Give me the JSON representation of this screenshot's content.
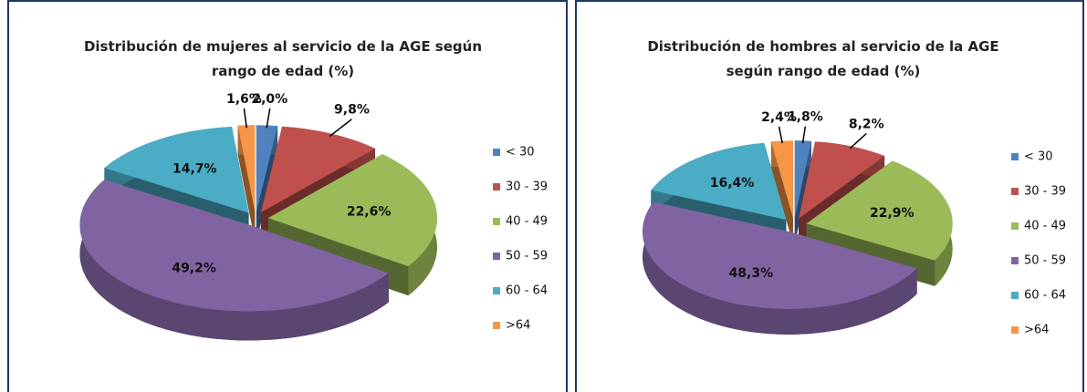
{
  "chart_data": [
    {
      "type": "pie",
      "title": "Distribución de mujeres al servicio de la AGE  según rango de edad (%)",
      "categories": [
        "< 30",
        "30 - 39",
        "40 - 49",
        "50 - 59",
        "60 - 64",
        ">64"
      ],
      "values": [
        2.0,
        9.8,
        22.6,
        49.2,
        14.7,
        1.6
      ],
      "value_labels": [
        "2,0%",
        "9,8%",
        "22,6%",
        "49,2%",
        "14,7%",
        "1,6%"
      ],
      "colors": [
        "#4f81bd",
        "#c0504d",
        "#9bbb59",
        "#8064a2",
        "#4bacc6",
        "#f79646"
      ],
      "legend": "right"
    },
    {
      "type": "pie",
      "title": "Distribución de hombres al servicio de la AGE según rango de edad (%)",
      "categories": [
        "< 30",
        "30 - 39",
        "40 - 49",
        "50 - 59",
        "60 - 64",
        ">64"
      ],
      "values": [
        1.8,
        8.2,
        22.9,
        48.3,
        16.4,
        2.4
      ],
      "value_labels": [
        "1,8%",
        "8,2%",
        "22,9%",
        "48,3%",
        "16,4%",
        "2,4%"
      ],
      "colors": [
        "#4f81bd",
        "#c0504d",
        "#9bbb59",
        "#8064a2",
        "#4bacc6",
        "#f79646"
      ],
      "legend": "right"
    }
  ]
}
